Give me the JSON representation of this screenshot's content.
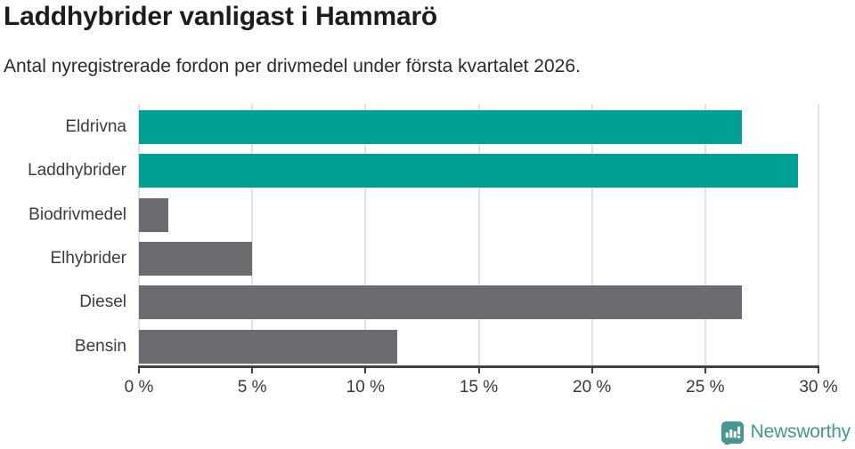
{
  "title": "Laddhybrider vanligast i Hammarö",
  "subtitle": "Antal nyregistrerade fordon per drivmedel under första kvartalet 2026.",
  "chart_data": {
    "type": "bar",
    "orientation": "horizontal",
    "title": "Laddhybrider vanligast i Hammarö",
    "subtitle": "Antal nyregistrerade fordon per drivmedel under första kvartalet 2026.",
    "categories": [
      "Eldrivna",
      "Laddhybrider",
      "Biodrivmedel",
      "Elhybrider",
      "Diesel",
      "Bensin"
    ],
    "values": [
      26.6,
      29.1,
      1.3,
      5.0,
      26.6,
      11.4
    ],
    "unit": "%",
    "xlabel": "",
    "ylabel": "",
    "xlim": [
      0,
      30
    ],
    "x_tick_values": [
      0,
      5,
      10,
      15,
      20,
      25,
      30
    ],
    "x_tick_labels": [
      "0 %",
      "5 %",
      "10 %",
      "15 %",
      "20 %",
      "25 %",
      "30 %"
    ],
    "grid": true,
    "legend": false,
    "highlight_color": "#00a096",
    "default_color": "#6b6b70",
    "bar_colors": [
      "#00a096",
      "#00a096",
      "#6b6b70",
      "#6b6b70",
      "#6b6b70",
      "#6b6b70"
    ]
  },
  "colors": {
    "gridline": "#e2e2e2",
    "axis": "#414141",
    "title_text": "#1d1d1d",
    "subtitle_text": "#2b2b2b",
    "label_text": "#3c3c3c"
  },
  "footer": {
    "brand": "Newsworthy",
    "brand_color": "#45978f",
    "logo_icon": "bar-chart-speech-bubble-icon"
  }
}
